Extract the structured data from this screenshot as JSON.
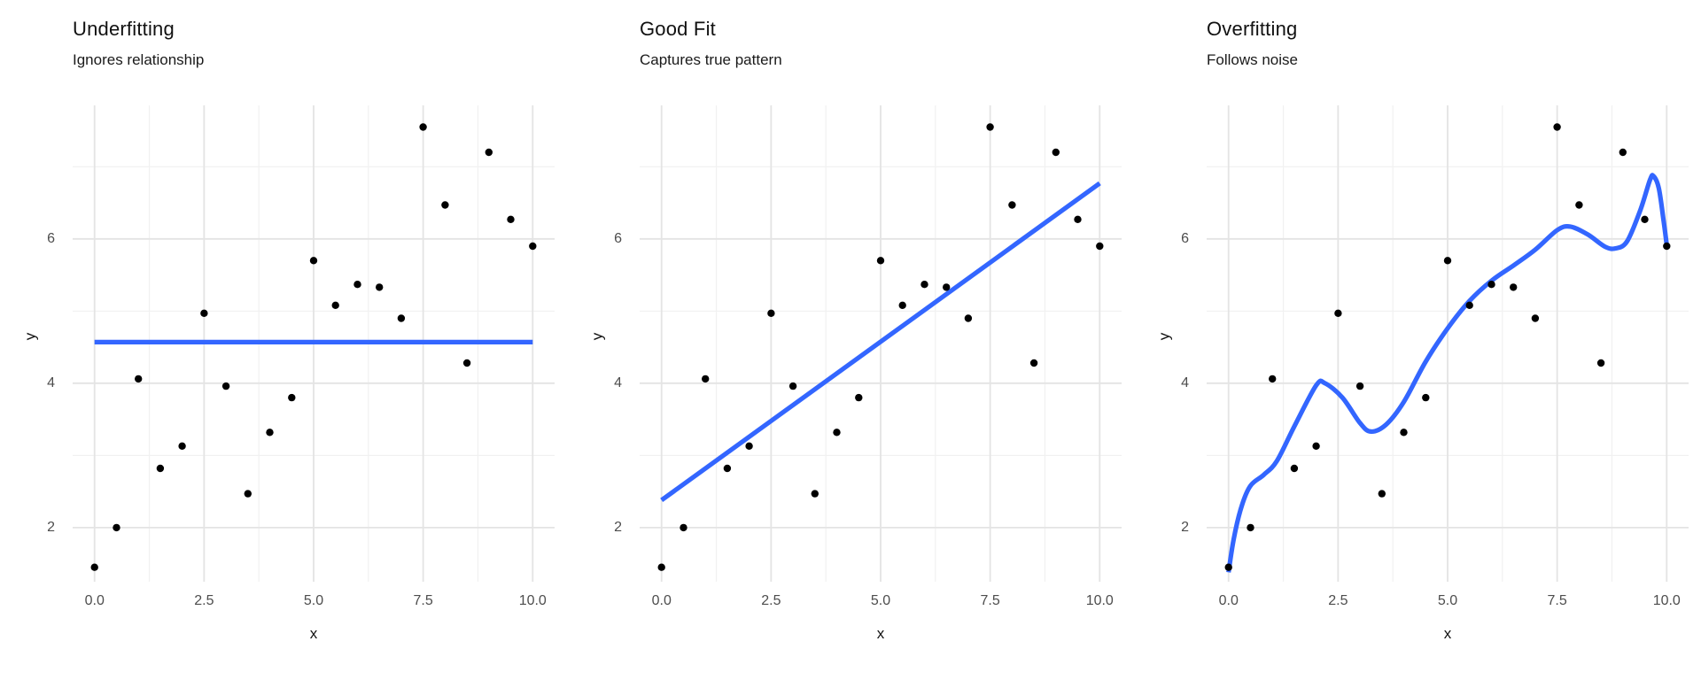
{
  "colors": {
    "background": "#ffffff",
    "point": "#000000",
    "fit_line": "#3366ff",
    "grid_major": "#e4e4e4",
    "grid_minor": "#f1f1f1",
    "tick_label": "#4d4d4d",
    "text": "#111111"
  },
  "chart_data": [
    {
      "type": "scatter",
      "title": "Underfitting",
      "subtitle": "Ignores relationship",
      "xlabel": "x",
      "ylabel": "y",
      "x": [
        0,
        0.5,
        1,
        1.5,
        2,
        2.5,
        3,
        3.5,
        4,
        4.5,
        5,
        5.5,
        6,
        6.5,
        7,
        7.5,
        8,
        8.5,
        9,
        9.5,
        10
      ],
      "y": [
        1.45,
        2.0,
        4.06,
        2.82,
        3.13,
        4.97,
        3.96,
        2.47,
        3.32,
        3.8,
        5.7,
        5.08,
        5.37,
        5.33,
        4.9,
        7.55,
        6.47,
        4.28,
        7.2,
        6.27,
        5.9
      ],
      "xlim": [
        -0.5,
        10.5
      ],
      "ylim": [
        1.25,
        7.85
      ],
      "x_ticks": {
        "values": [
          0,
          2.5,
          5,
          7.5,
          10
        ],
        "labels": [
          "0.0",
          "2.5",
          "5.0",
          "7.5",
          "10.0"
        ],
        "minor": [
          1.25,
          3.75,
          6.25,
          8.75
        ]
      },
      "y_ticks": {
        "values": [
          2,
          4,
          6
        ],
        "labels": [
          "2",
          "4",
          "6"
        ],
        "minor": [
          3,
          5,
          7
        ]
      },
      "grid": true,
      "legend": "none",
      "fit": {
        "kind": "constant-mean",
        "mean": 4.57,
        "points": [
          [
            0,
            4.57
          ],
          [
            10,
            4.57
          ]
        ]
      }
    },
    {
      "type": "scatter",
      "title": "Good Fit",
      "subtitle": "Captures true pattern",
      "xlabel": "x",
      "ylabel": "y",
      "x": [
        0,
        0.5,
        1,
        1.5,
        2,
        2.5,
        3,
        3.5,
        4,
        4.5,
        5,
        5.5,
        6,
        6.5,
        7,
        7.5,
        8,
        8.5,
        9,
        9.5,
        10
      ],
      "y": [
        1.45,
        2.0,
        4.06,
        2.82,
        3.13,
        4.97,
        3.96,
        2.47,
        3.32,
        3.8,
        5.7,
        5.08,
        5.37,
        5.33,
        4.9,
        7.55,
        6.47,
        4.28,
        7.2,
        6.27,
        5.9
      ],
      "xlim": [
        -0.5,
        10.5
      ],
      "ylim": [
        1.25,
        7.85
      ],
      "x_ticks": {
        "values": [
          0,
          2.5,
          5,
          7.5,
          10
        ],
        "labels": [
          "0.0",
          "2.5",
          "5.0",
          "7.5",
          "10.0"
        ],
        "minor": [
          1.25,
          3.75,
          6.25,
          8.75
        ]
      },
      "y_ticks": {
        "values": [
          2,
          4,
          6
        ],
        "labels": [
          "2",
          "4",
          "6"
        ],
        "minor": [
          3,
          5,
          7
        ]
      },
      "grid": true,
      "legend": "none",
      "fit": {
        "kind": "linear",
        "intercept": 2.38,
        "slope": 0.44,
        "points": [
          [
            0,
            2.38
          ],
          [
            10,
            6.77
          ]
        ]
      }
    },
    {
      "type": "scatter",
      "title": "Overfitting",
      "subtitle": "Follows noise",
      "xlabel": "x",
      "ylabel": "y",
      "x": [
        0,
        0.5,
        1,
        1.5,
        2,
        2.5,
        3,
        3.5,
        4,
        4.5,
        5,
        5.5,
        6,
        6.5,
        7,
        7.5,
        8,
        8.5,
        9,
        9.5,
        10
      ],
      "y": [
        1.45,
        2.0,
        4.06,
        2.82,
        3.13,
        4.97,
        3.96,
        2.47,
        3.32,
        3.8,
        5.7,
        5.08,
        5.37,
        5.33,
        4.9,
        7.55,
        6.47,
        4.28,
        7.2,
        6.27,
        5.9
      ],
      "xlim": [
        -0.5,
        10.5
      ],
      "ylim": [
        1.25,
        7.85
      ],
      "x_ticks": {
        "values": [
          0,
          2.5,
          5,
          7.5,
          10
        ],
        "labels": [
          "0.0",
          "2.5",
          "5.0",
          "7.5",
          "10.0"
        ],
        "minor": [
          1.25,
          3.75,
          6.25,
          8.75
        ]
      },
      "y_ticks": {
        "values": [
          2,
          4,
          6
        ],
        "labels": [
          "2",
          "4",
          "6"
        ],
        "minor": [
          3,
          5,
          7
        ]
      },
      "grid": true,
      "legend": "none",
      "fit": {
        "kind": "flexible-spline",
        "points": [
          [
            0,
            1.38
          ],
          [
            0.12,
            1.85
          ],
          [
            0.3,
            2.3
          ],
          [
            0.5,
            2.58
          ],
          [
            0.8,
            2.73
          ],
          [
            1.1,
            2.92
          ],
          [
            1.5,
            3.4
          ],
          [
            2.0,
            3.97
          ],
          [
            2.2,
            4.0
          ],
          [
            2.6,
            3.8
          ],
          [
            3.0,
            3.45
          ],
          [
            3.25,
            3.33
          ],
          [
            3.6,
            3.43
          ],
          [
            4.0,
            3.74
          ],
          [
            4.5,
            4.3
          ],
          [
            5.0,
            4.76
          ],
          [
            5.5,
            5.14
          ],
          [
            6.0,
            5.42
          ],
          [
            6.5,
            5.63
          ],
          [
            7.0,
            5.85
          ],
          [
            7.5,
            6.12
          ],
          [
            7.8,
            6.17
          ],
          [
            8.2,
            6.06
          ],
          [
            8.6,
            5.89
          ],
          [
            8.85,
            5.87
          ],
          [
            9.1,
            5.97
          ],
          [
            9.4,
            6.4
          ],
          [
            9.62,
            6.82
          ],
          [
            9.7,
            6.87
          ],
          [
            9.82,
            6.7
          ],
          [
            9.93,
            6.25
          ],
          [
            10,
            5.92
          ]
        ]
      }
    }
  ]
}
